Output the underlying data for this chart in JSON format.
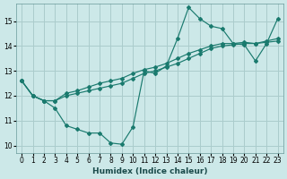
{
  "title": "",
  "xlabel": "Humidex (Indice chaleur)",
  "ylabel": "",
  "bg_color": "#cce8e8",
  "grid_color": "#aacccc",
  "line_color": "#1a7a6e",
  "xlim": [
    -0.5,
    23.5
  ],
  "ylim": [
    9.7,
    15.7
  ],
  "xticks": [
    0,
    1,
    2,
    3,
    4,
    5,
    6,
    7,
    8,
    9,
    10,
    11,
    12,
    13,
    14,
    15,
    16,
    17,
    18,
    19,
    20,
    21,
    22,
    23
  ],
  "yticks": [
    10,
    11,
    12,
    13,
    14,
    15
  ],
  "series": [
    {
      "x": [
        0,
        1,
        2,
        3,
        4,
        5,
        6,
        7,
        8,
        9,
        10,
        11,
        12,
        13,
        14,
        15,
        16,
        17,
        18,
        19,
        20,
        21,
        22,
        23
      ],
      "y": [
        12.6,
        12.0,
        11.8,
        11.5,
        10.8,
        10.65,
        10.5,
        10.5,
        10.1,
        10.05,
        10.75,
        13.0,
        12.9,
        13.2,
        14.3,
        15.55,
        15.1,
        14.8,
        14.7,
        14.1,
        14.05,
        13.4,
        14.1,
        15.1
      ]
    },
    {
      "x": [
        0,
        1,
        2,
        3,
        4,
        5,
        6,
        7,
        8,
        9,
        10,
        11,
        12,
        13,
        14,
        15,
        16,
        17,
        18,
        19,
        20,
        21,
        22,
        23
      ],
      "y": [
        12.6,
        12.0,
        11.8,
        11.8,
        12.0,
        12.1,
        12.2,
        12.3,
        12.4,
        12.5,
        12.7,
        12.9,
        13.0,
        13.15,
        13.3,
        13.5,
        13.7,
        13.9,
        14.0,
        14.05,
        14.1,
        14.1,
        14.15,
        14.2
      ]
    },
    {
      "x": [
        0,
        1,
        2,
        3,
        4,
        5,
        6,
        7,
        8,
        9,
        10,
        11,
        12,
        13,
        14,
        15,
        16,
        17,
        18,
        19,
        20,
        21,
        22,
        23
      ],
      "y": [
        12.6,
        12.0,
        11.8,
        11.8,
        12.1,
        12.2,
        12.35,
        12.5,
        12.6,
        12.7,
        12.9,
        13.05,
        13.15,
        13.3,
        13.5,
        13.7,
        13.85,
        14.0,
        14.1,
        14.1,
        14.15,
        14.1,
        14.2,
        14.3
      ]
    }
  ]
}
